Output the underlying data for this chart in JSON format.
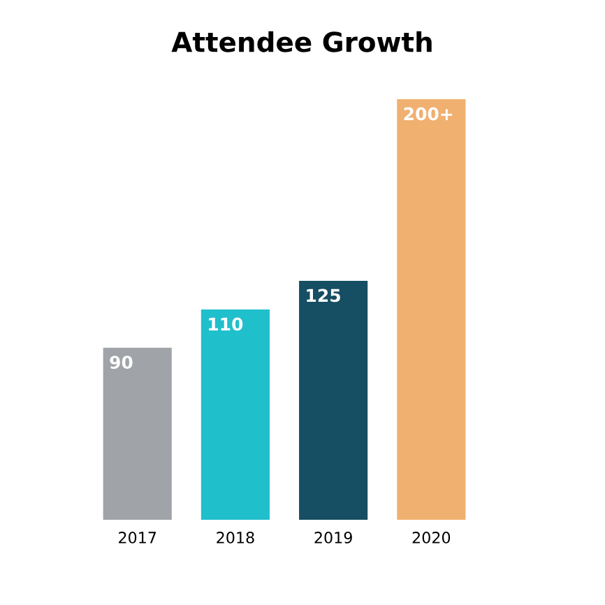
{
  "chart_data": {
    "type": "bar",
    "title": "Attendee Growth",
    "categories": [
      "2017",
      "2018",
      "2019",
      "2020"
    ],
    "values": [
      90,
      110,
      125,
      220
    ],
    "value_labels": [
      "90",
      "110",
      "125",
      "200+"
    ],
    "colors": [
      "#a0a4a8",
      "#20bfcc",
      "#164e63",
      "#f0b070"
    ],
    "grid": false,
    "legend": false
  }
}
